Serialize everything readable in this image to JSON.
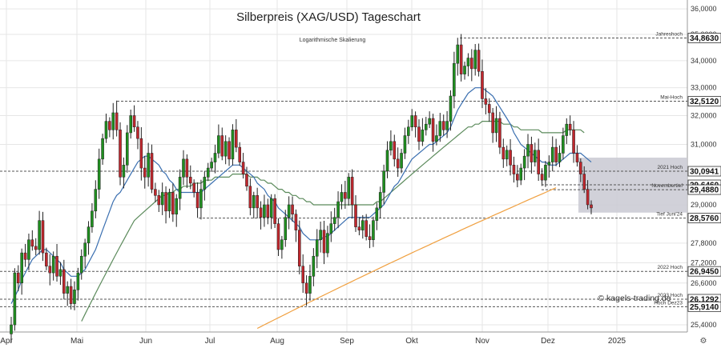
{
  "chart_data": {
    "type": "candlestick",
    "title": "Silberpreis (XAG/USD) Tageschart",
    "subtitle": "Logarithmische Skalierung",
    "watermark": "© kagels-trading.de",
    "y_scale": "log",
    "ylim": [
      25.2,
      36.1
    ],
    "y_ticks": [
      "36,0000",
      "35,0000",
      "34,0000",
      "33,0000",
      "32,0000",
      "31,0000",
      "29,0000",
      "27,8000",
      "27,2000",
      "26,6000",
      "25,4000"
    ],
    "x_axis_labels": [
      "Apr",
      "Mai",
      "Jun",
      "Jul",
      "Aug",
      "Sep",
      "Okt",
      "Nov",
      "Dez",
      "2025"
    ],
    "colors": {
      "up": "#1f8f1f",
      "down": "#c0272d",
      "ma_fast": "#3a6fb0",
      "ma_mid": "#5b8a5b",
      "ma_slow": "#f0a040",
      "zone": "#c9c9d2"
    },
    "levels": [
      {
        "label": "Jahreshoch",
        "value": 34.863,
        "value_text": "34,8630"
      },
      {
        "label": "Mai-Hoch",
        "value": 32.512,
        "value_text": "32,5120"
      },
      {
        "label": "2021 Hoch",
        "value": 30.0941,
        "value_text": "30,0941"
      },
      {
        "label": "",
        "value": 29.646,
        "value_text": "29,6460"
      },
      {
        "label": "Novembertief",
        "value": 29.488,
        "value_text": "29,4880"
      },
      {
        "label": "Tief Juni'24",
        "value": 28.576,
        "value_text": "28,5760"
      },
      {
        "label": "2022 Hoch",
        "value": 26.945,
        "value_text": "26,9450"
      },
      {
        "label": "2023 Hoch",
        "value": 26.1292,
        "value_text": "26,1292"
      },
      {
        "label": "Hoch Dez23",
        "value": 25.914,
        "value_text": "25,9140"
      }
    ],
    "zone": {
      "low": 28.75,
      "high": 30.55
    },
    "series": [
      {
        "name": "close",
        "values": [
          25.4,
          26.9,
          26.6,
          27.5,
          27.3,
          27.9,
          27.7,
          27.6,
          28.5,
          27.5,
          27.1,
          26.9,
          27.4,
          26.8,
          27.0,
          26.3,
          26.5,
          26.0,
          26.4,
          26.9,
          27.4,
          27.8,
          28.3,
          28.8,
          29.5,
          30.5,
          31.2,
          31.8,
          31.5,
          32.1,
          31.5,
          29.9,
          30.3,
          31.4,
          32.0,
          31.6,
          31.2,
          30.2,
          29.9,
          30.7,
          29.5,
          29.3,
          29.0,
          29.4,
          28.8,
          29.4,
          28.7,
          29.2,
          29.9,
          30.5,
          29.9,
          29.7,
          29.4,
          28.9,
          29.5,
          29.9,
          30.2,
          30.4,
          30.7,
          31.3,
          30.6,
          31.1,
          30.5,
          31.5,
          30.9,
          30.4,
          30.0,
          29.6,
          28.9,
          29.3,
          28.9,
          28.6,
          29.0,
          28.6,
          29.2,
          28.4,
          27.6,
          27.9,
          28.6,
          29.0,
          28.7,
          28.2,
          27.1,
          26.6,
          26.3,
          26.8,
          27.4,
          27.9,
          28.2,
          27.5,
          28.1,
          28.4,
          28.6,
          29.1,
          29.4,
          29.2,
          29.9,
          29.0,
          28.3,
          28.2,
          28.5,
          28.0,
          27.9,
          28.5,
          28.9,
          29.4,
          30.1,
          30.8,
          31.1,
          30.5,
          30.2,
          30.7,
          31.3,
          31.6,
          32.0,
          31.6,
          31.1,
          31.5,
          31.7,
          31.9,
          31.1,
          31.3,
          31.8,
          31.5,
          31.8,
          32.7,
          33.9,
          34.6,
          33.5,
          33.8,
          34.1,
          33.7,
          34.4,
          33.6,
          32.6,
          32.4,
          32.1,
          31.4,
          31.9,
          30.9,
          30.5,
          30.8,
          30.3,
          30.0,
          29.8,
          30.2,
          30.6,
          31.0,
          30.4,
          30.8,
          30.0,
          29.8,
          30.3,
          30.4,
          30.9,
          30.4,
          30.7,
          31.3,
          31.7,
          31.5,
          30.7,
          30.4,
          30.0,
          29.5,
          29.0,
          28.9
        ]
      },
      {
        "name": "ma_fast_values",
        "values": [
          26.0,
          26.2,
          26.4,
          26.7,
          26.9,
          27.1,
          27.3,
          27.4,
          27.5,
          27.6,
          27.6,
          27.5,
          27.4,
          27.3,
          27.2,
          27.0,
          26.9,
          26.8,
          26.8,
          26.8,
          26.9,
          27.0,
          27.2,
          27.4,
          27.6,
          27.9,
          28.2,
          28.5,
          28.8,
          29.1,
          29.3,
          29.4,
          29.6,
          29.8,
          30.0,
          30.2,
          30.4,
          30.5,
          30.6,
          30.6,
          30.5,
          30.4,
          30.3,
          30.1,
          30.0,
          29.8,
          29.7,
          29.5,
          29.4,
          29.4,
          29.4,
          29.4,
          29.4,
          29.4,
          29.4,
          29.5,
          29.6,
          29.7,
          29.8,
          29.9,
          30.0,
          30.1,
          30.2,
          30.3,
          30.3,
          30.3,
          30.2,
          30.1,
          30.0,
          29.9,
          29.7,
          29.6,
          29.5,
          29.3,
          29.2,
          29.1,
          28.9,
          28.8,
          28.7,
          28.6,
          28.5,
          28.4,
          28.3,
          28.1,
          28.0,
          27.9,
          27.9,
          27.9,
          27.9,
          28.0,
          28.0,
          28.1,
          28.2,
          28.3,
          28.4,
          28.5,
          28.6,
          28.6,
          28.6,
          28.6,
          28.6,
          28.6,
          28.6,
          28.7,
          28.8,
          28.9,
          29.0,
          29.2,
          29.4,
          29.6,
          29.7,
          29.9,
          30.1,
          30.3,
          30.5,
          30.6,
          30.7,
          30.8,
          30.9,
          31.0,
          31.0,
          31.1,
          31.2,
          31.3,
          31.4,
          31.6,
          31.9,
          32.2,
          32.4,
          32.6,
          32.8,
          32.9,
          33.0,
          33.0,
          33.0,
          32.9,
          32.8,
          32.7,
          32.5,
          32.3,
          32.1,
          31.9,
          31.7,
          31.4,
          31.2,
          31.0,
          30.9,
          30.8,
          30.7,
          30.6,
          30.5,
          30.4,
          30.4,
          30.3,
          30.3,
          30.3,
          30.4,
          30.5,
          30.6,
          30.7,
          30.7,
          30.7,
          30.7,
          30.6,
          30.5,
          30.4
        ]
      }
    ],
    "ma_mid_values": [
      null,
      null,
      null,
      null,
      null,
      null,
      null,
      null,
      null,
      null,
      null,
      null,
      null,
      null,
      null,
      null,
      null,
      null,
      null,
      null,
      25.5,
      25.7,
      25.9,
      26.1,
      26.3,
      26.5,
      26.7,
      26.9,
      27.1,
      27.3,
      27.5,
      27.7,
      27.9,
      28.1,
      28.3,
      28.5,
      28.6,
      28.7,
      28.8,
      28.9,
      29.0,
      29.1,
      29.2,
      29.3,
      29.3,
      29.4,
      29.4,
      29.5,
      29.5,
      29.6,
      29.6,
      29.6,
      29.7,
      29.7,
      29.7,
      29.8,
      29.8,
      29.8,
      29.9,
      29.9,
      29.9,
      29.9,
      29.9,
      30.0,
      30.0,
      30.0,
      30.0,
      30.0,
      29.9,
      29.9,
      29.9,
      29.8,
      29.8,
      29.7,
      29.7,
      29.6,
      29.5,
      29.5,
      29.4,
      29.4,
      29.3,
      29.3,
      29.2,
      29.2,
      29.1,
      29.1,
      29.0,
      29.0,
      29.0,
      29.0,
      29.0,
      29.0,
      29.0,
      29.0,
      29.0,
      29.0,
      29.0,
      29.0,
      29.0,
      29.0,
      29.0,
      29.0,
      29.0,
      29.0,
      29.1,
      29.1,
      29.2,
      29.3,
      29.4,
      29.5,
      29.6,
      29.7,
      29.8,
      29.9,
      30.0,
      30.1,
      30.2,
      30.3,
      30.4,
      30.5,
      30.6,
      30.7,
      30.8,
      30.9,
      31.0,
      31.1,
      31.2,
      31.3,
      31.4,
      31.5,
      31.6,
      31.6,
      31.7,
      31.7,
      31.8,
      31.8,
      31.8,
      31.8,
      31.8,
      31.8,
      31.7,
      31.7,
      31.7,
      31.6,
      31.6,
      31.5,
      31.5,
      31.5,
      31.5,
      31.5,
      31.5,
      31.4,
      31.4,
      31.4,
      31.4,
      31.4,
      31.4,
      31.4,
      31.5,
      31.5,
      31.5,
      31.5,
      31.5,
      31.4,
      null,
      null
    ],
    "ma_slow_start_index": 70,
    "ma_slow_values": [
      25.3,
      25.35,
      25.4,
      25.45,
      25.5,
      25.55,
      25.6,
      25.65,
      25.7,
      25.75,
      25.8,
      25.85,
      25.9,
      25.95,
      26.0,
      26.05,
      26.1,
      26.15,
      26.2,
      26.25,
      26.3,
      26.35,
      26.4,
      26.45,
      26.5,
      26.55,
      26.6,
      26.65,
      26.7,
      26.75,
      26.8,
      26.85,
      26.9,
      26.95,
      27.0,
      27.05,
      27.1,
      27.15,
      27.2,
      27.25,
      27.3,
      27.35,
      27.4,
      27.45,
      27.5,
      27.55,
      27.6,
      27.65,
      27.7,
      27.75,
      27.8,
      27.85,
      27.9,
      27.95,
      28.0,
      28.05,
      28.1,
      28.15,
      28.2,
      28.25,
      28.3,
      28.35,
      28.4,
      28.45,
      28.5,
      28.55,
      28.6,
      28.65,
      28.7,
      28.75,
      28.8,
      28.85,
      28.9,
      28.95,
      29.0,
      29.05,
      29.1,
      29.15,
      29.2,
      29.25,
      29.3,
      29.35,
      29.4,
      29.45,
      29.5,
      29.55
    ]
  }
}
